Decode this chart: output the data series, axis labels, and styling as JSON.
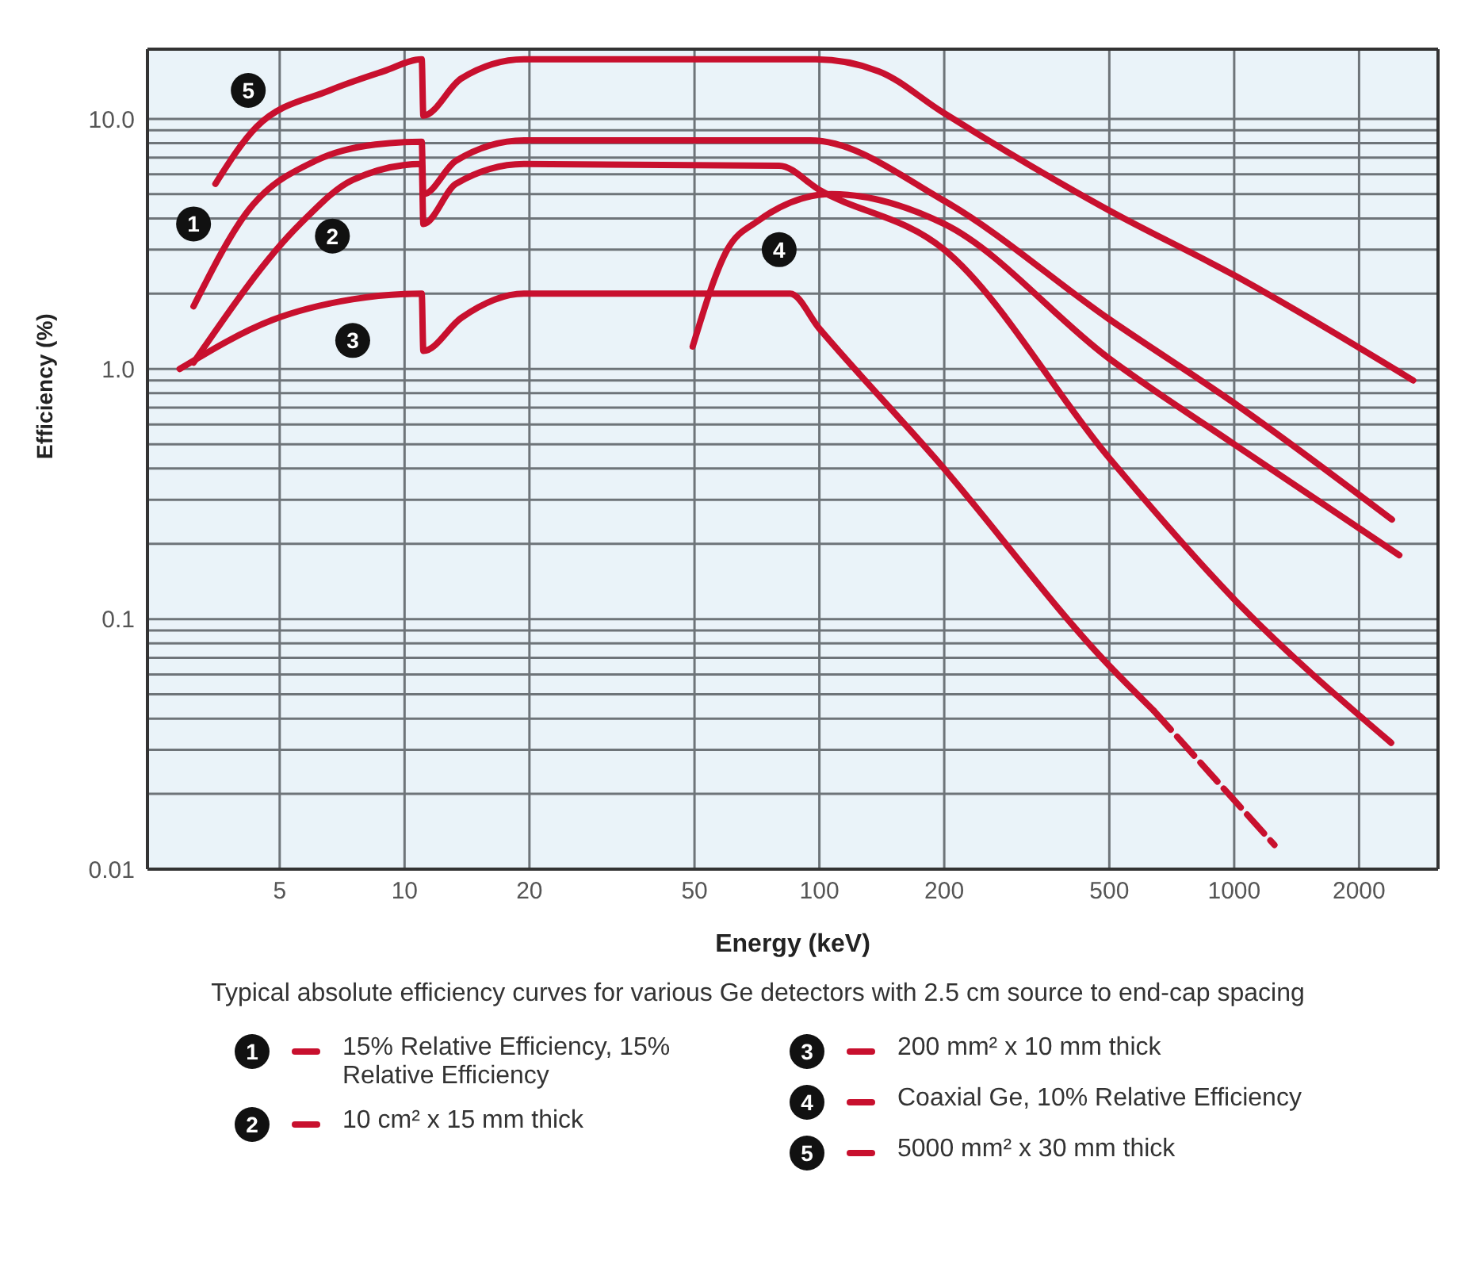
{
  "chart_data": {
    "type": "line",
    "xlabel": "Energy (keV)",
    "ylabel": "Efficiency (%)",
    "log": "xy",
    "grid": true,
    "legend": "bottom",
    "line_style": "solid",
    "marker": "none",
    "xlim": [
      2.4,
      3100
    ],
    "xticks": [
      5,
      10,
      20,
      50,
      100,
      200,
      500,
      1000,
      2000
    ],
    "ylim": [
      0.01,
      19
    ],
    "yticks": [
      0.01,
      {
        "value": 0.02,
        "label": null
      },
      {
        "value": 0.03,
        "label": null
      },
      {
        "value": 0.04,
        "label": null
      },
      {
        "value": 0.05,
        "label": null
      },
      {
        "value": 0.06,
        "label": null
      },
      {
        "value": 0.07,
        "label": null
      },
      {
        "value": 0.08,
        "label": null
      },
      {
        "value": 0.09,
        "label": null
      },
      0.1,
      {
        "value": 0.2,
        "label": null
      },
      {
        "value": 0.3,
        "label": null
      },
      {
        "value": 0.4,
        "label": null
      },
      {
        "value": 0.5,
        "label": null
      },
      {
        "value": 0.6,
        "label": null
      },
      {
        "value": 0.7,
        "label": null
      },
      {
        "value": 0.8,
        "label": null
      },
      {
        "value": 0.9,
        "label": null
      },
      {
        "value": 1,
        "label": "1.0"
      },
      {
        "value": 2,
        "label": null
      },
      {
        "value": 3,
        "label": null
      },
      {
        "value": 4,
        "label": null
      },
      {
        "value": 5,
        "label": null
      },
      {
        "value": 6,
        "label": null
      },
      {
        "value": 7,
        "label": null
      },
      {
        "value": 8,
        "label": null
      },
      {
        "value": 9,
        "label": null
      },
      {
        "value": 10,
        "label": "10.0"
      }
    ],
    "series": [
      {
        "name": "15% Relative Efficiency, 15% Relative Efficiency",
        "color": "#c8102e",
        "x": [
          3.1,
          4.2,
          6.1,
          8.5,
          11.0,
          11.1,
          13.3,
          19.4,
          95,
          200,
          500,
          1000,
          2400
        ],
        "values": [
          1.78,
          4.3,
          6.8,
          7.9,
          8.1,
          5.0,
          6.8,
          8.2,
          8.2,
          4.7,
          1.58,
          0.73,
          0.25
        ]
      },
      {
        "name": "10 cm² x 15 mm thick",
        "color": "#c8102e",
        "x": [
          3.1,
          5.6,
          7.5,
          11.0,
          11.1,
          13.3,
          19.4,
          80,
          100,
          200,
          500,
          1000,
          2390
        ],
        "values": [
          1.06,
          3.8,
          5.7,
          6.6,
          3.8,
          5.5,
          6.6,
          6.5,
          5.2,
          3.0,
          0.44,
          0.12,
          0.032
        ]
      },
      {
        "name": "200 mm² x 10 mm thick",
        "color": "#c8102e",
        "x": [
          2.87,
          4.8,
          7.5,
          11.0,
          11.1,
          13.7,
          19.4,
          85,
          100,
          190,
          500,
          640
        ],
        "values": [
          1.0,
          1.57,
          1.9,
          2.0,
          1.18,
          1.6,
          2.0,
          2.0,
          1.45,
          0.44,
          0.065,
          0.043
        ],
        "line_style": "solid"
      },
      {
        "name": "Coaxial Ge, 10% Relative Efficiency",
        "color": "#c8102e",
        "x": [
          49.5,
          60,
          71,
          107,
          200,
          500,
          1000,
          2500
        ],
        "values": [
          1.23,
          3.0,
          3.9,
          5.0,
          3.8,
          1.1,
          0.5,
          0.18
        ]
      },
      {
        "name": "5000 mm² x 30 mm thick",
        "color": "#c8102e",
        "x": [
          3.5,
          4.4,
          6.6,
          8.9,
          11.0,
          11.1,
          13.7,
          19.4,
          98,
          139,
          197,
          500,
          1000,
          2700
        ],
        "values": [
          5.5,
          9.3,
          13,
          15.5,
          17.3,
          10.3,
          14.5,
          17.3,
          17.3,
          15.5,
          10.7,
          4.3,
          2.37,
          0.9
        ]
      },
      {
        "color": "#c8102e",
        "x": [
          640,
          1250
        ],
        "values": [
          0.043,
          0.0125
        ],
        "line_style": "dashed"
      }
    ],
    "annotations": [
      {
        "text": "1",
        "x": 3.1,
        "y": 3.8
      },
      {
        "text": "2",
        "x": 6.7,
        "y": 3.4
      },
      {
        "text": "3",
        "x": 7.5,
        "y": 1.3
      },
      {
        "text": "4",
        "x": 80,
        "y": 3.0
      },
      {
        "text": "5",
        "x": 4.2,
        "y": 13
      },
      "Typical absolute efficiency curves for various Ge detectors with 2.5 cm source to end-cap spacing"
    ]
  }
}
